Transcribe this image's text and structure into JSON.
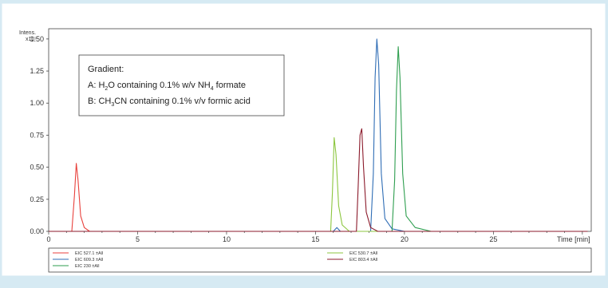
{
  "chart_data": {
    "type": "line",
    "title": "",
    "ylabel": "Intens.",
    "y_multiplier": "x10⁷",
    "xlabel": "Time [min]",
    "xlim": [
      0,
      30.5
    ],
    "ylim": [
      0,
      1.58
    ],
    "x_ticks": [
      0,
      5,
      10,
      15,
      20,
      25
    ],
    "y_ticks": [
      0.0,
      0.25,
      0.5,
      0.75,
      1.0,
      1.25,
      1.5
    ],
    "y_tick_labels": [
      "0.00",
      "0.25",
      "0.50",
      "0.75",
      "1.00",
      "1.25",
      "1.50"
    ],
    "grid": false,
    "legend_position": "bottom",
    "annotation": {
      "title": "Gradient:",
      "line_a": {
        "pre": "A: H",
        "s1": "2",
        "mid": "O containing 0.1% w/v NH",
        "s2": "4",
        "post": " formate"
      },
      "line_b": {
        "pre": "B: CH",
        "s1": "3",
        "post": "CN containing 0.1% v/v formic acid"
      }
    },
    "series": [
      {
        "name": "EIC 527.1 ±All",
        "color": "#e8413c",
        "points": [
          [
            0.0,
            0.0
          ],
          [
            1.3,
            0.0
          ],
          [
            1.45,
            0.28
          ],
          [
            1.55,
            0.53
          ],
          [
            1.65,
            0.4
          ],
          [
            1.8,
            0.12
          ],
          [
            2.0,
            0.03
          ],
          [
            2.3,
            0.0
          ],
          [
            30.3,
            0.0
          ]
        ]
      },
      {
        "name": "EIC 609.3 ±All",
        "color": "#2f6db5",
        "points": [
          [
            0.0,
            0.0
          ],
          [
            16.0,
            0.0
          ],
          [
            16.2,
            0.03
          ],
          [
            16.4,
            0.0
          ],
          [
            18.1,
            0.0
          ],
          [
            18.25,
            0.45
          ],
          [
            18.35,
            1.2
          ],
          [
            18.45,
            1.5
          ],
          [
            18.55,
            1.3
          ],
          [
            18.7,
            0.45
          ],
          [
            18.9,
            0.1
          ],
          [
            19.3,
            0.02
          ],
          [
            20.0,
            0.0
          ],
          [
            30.3,
            0.0
          ]
        ]
      },
      {
        "name": "EIC 230 ±All",
        "color": "#2e9e4f",
        "points": [
          [
            0.0,
            0.0
          ],
          [
            19.3,
            0.0
          ],
          [
            19.45,
            0.4
          ],
          [
            19.55,
            1.1
          ],
          [
            19.65,
            1.44
          ],
          [
            19.75,
            1.2
          ],
          [
            19.9,
            0.45
          ],
          [
            20.1,
            0.12
          ],
          [
            20.6,
            0.03
          ],
          [
            21.5,
            0.0
          ],
          [
            30.3,
            0.0
          ]
        ]
      },
      {
        "name": "EIC 530.7 ±All",
        "color": "#8cc63f",
        "points": [
          [
            0.0,
            0.0
          ],
          [
            15.85,
            0.0
          ],
          [
            15.95,
            0.3
          ],
          [
            16.05,
            0.73
          ],
          [
            16.15,
            0.6
          ],
          [
            16.3,
            0.2
          ],
          [
            16.5,
            0.05
          ],
          [
            16.9,
            0.0
          ],
          [
            30.3,
            0.0
          ]
        ]
      },
      {
        "name": "EIC 803.4 ±All",
        "color": "#8b1a2b",
        "points": [
          [
            0.0,
            0.0
          ],
          [
            17.3,
            0.0
          ],
          [
            17.4,
            0.35
          ],
          [
            17.5,
            0.75
          ],
          [
            17.6,
            0.8
          ],
          [
            17.7,
            0.5
          ],
          [
            17.85,
            0.15
          ],
          [
            18.1,
            0.03
          ],
          [
            18.5,
            0.0
          ],
          [
            30.3,
            0.0
          ]
        ]
      }
    ],
    "legend_layout": [
      {
        "series": 0,
        "column": 0,
        "row": 0
      },
      {
        "series": 1,
        "column": 0,
        "row": 1
      },
      {
        "series": 2,
        "column": 0,
        "row": 2
      },
      {
        "series": 3,
        "column": 1,
        "row": 0
      },
      {
        "series": 4,
        "column": 1,
        "row": 1
      }
    ]
  }
}
